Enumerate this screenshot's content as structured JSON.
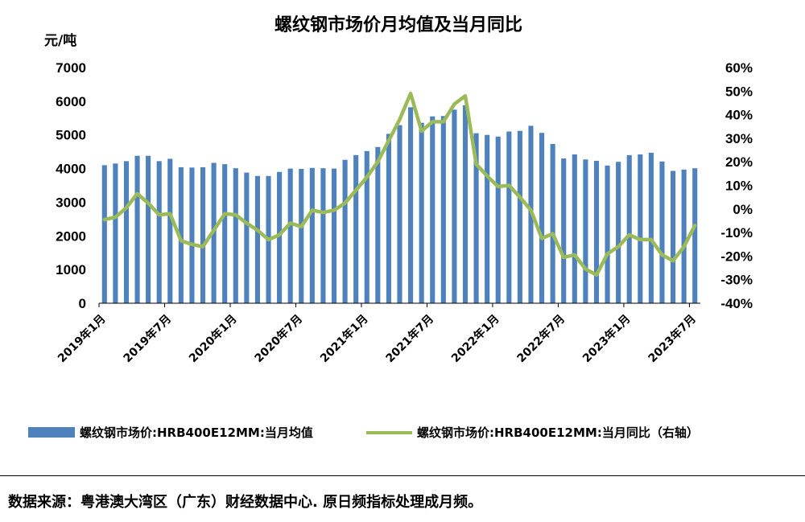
{
  "colors": {
    "bar": "#4f81bd",
    "line": "#9bbb59",
    "axis": "#000000",
    "text": "#000000"
  },
  "chart_data": {
    "type": "bar",
    "title": "螺纹钢市场价月均值及当月同比",
    "left_unit": "元/吨",
    "ylim_left": [
      0,
      7000
    ],
    "ylim_right": [
      -40,
      60
    ],
    "left_ticks": [
      "7000",
      "6000",
      "5000",
      "4000",
      "3000",
      "2000",
      "1000",
      "0"
    ],
    "right_ticks": [
      "60%",
      "50%",
      "40%",
      "30%",
      "20%",
      "10%",
      "0%",
      "-10%",
      "-20%",
      "-30%",
      "-40%"
    ],
    "x_tick_labels": [
      "2019年1月",
      "2019年7月",
      "2020年1月",
      "2020年7月",
      "2021年1月",
      "2021年7月",
      "2022年1月",
      "2022年7月",
      "2023年1月",
      "2023年7月"
    ],
    "categories": [
      "2019-01",
      "2019-02",
      "2019-03",
      "2019-04",
      "2019-05",
      "2019-06",
      "2019-07",
      "2019-08",
      "2019-09",
      "2019-10",
      "2019-11",
      "2019-12",
      "2020-01",
      "2020-02",
      "2020-03",
      "2020-04",
      "2020-05",
      "2020-06",
      "2020-07",
      "2020-08",
      "2020-09",
      "2020-10",
      "2020-11",
      "2020-12",
      "2021-01",
      "2021-02",
      "2021-03",
      "2021-04",
      "2021-05",
      "2021-06",
      "2021-07",
      "2021-08",
      "2021-09",
      "2021-10",
      "2021-11",
      "2021-12",
      "2022-01",
      "2022-02",
      "2022-03",
      "2022-04",
      "2022-05",
      "2022-06",
      "2022-07",
      "2022-08",
      "2022-09",
      "2022-10",
      "2022-11",
      "2022-12",
      "2023-01",
      "2023-02",
      "2023-03",
      "2023-04",
      "2023-05",
      "2023-06",
      "2023-07"
    ],
    "series": [
      {
        "name": "螺纹钢市场价:HRB400E12MM:当月均值",
        "axis": "left",
        "type": "bar",
        "values": [
          4100,
          4150,
          4220,
          4380,
          4380,
          4220,
          4290,
          4040,
          4030,
          4040,
          4170,
          4130,
          4010,
          3880,
          3780,
          3780,
          3900,
          4000,
          3990,
          4020,
          4010,
          4000,
          4260,
          4400,
          4520,
          4640,
          5030,
          5290,
          5820,
          5360,
          5550,
          5560,
          5750,
          5880,
          5050,
          5000,
          4950,
          5100,
          5120,
          5270,
          5060,
          4730,
          4300,
          4420,
          4270,
          4230,
          4090,
          4200,
          4400,
          4420,
          4470,
          4210,
          3930,
          3970,
          4010
        ]
      },
      {
        "name": "螺纹钢市场价:HRB400E12MM:当月同比（右轴）",
        "axis": "right",
        "type": "line",
        "values": [
          -4.5,
          -3.5,
          0.5,
          6.5,
          2.5,
          -2.5,
          -2,
          -13.5,
          -15,
          -16,
          -9,
          -2,
          -2.5,
          -6,
          -9,
          -13,
          -11,
          -6,
          -7.5,
          -0.5,
          -1.5,
          -0.5,
          2.5,
          8,
          13.5,
          20,
          29,
          38,
          49,
          33,
          37,
          37,
          44.5,
          48,
          19,
          14,
          9.5,
          10,
          5,
          -0.5,
          -12.5,
          -10.5,
          -20.5,
          -19.5,
          -25.5,
          -28,
          -19,
          -16,
          -11,
          -13,
          -13,
          -19.5,
          -22,
          -16,
          -7
        ]
      }
    ]
  },
  "legend": {
    "bar_label": "螺纹钢市场价:HRB400E12MM:当月均值",
    "line_label": "螺纹钢市场价:HRB400E12MM:当月同比（右轴）"
  },
  "source": "数据来源：粤港澳大湾区（广东）财经数据中心. 原日频指标处理成月频。"
}
